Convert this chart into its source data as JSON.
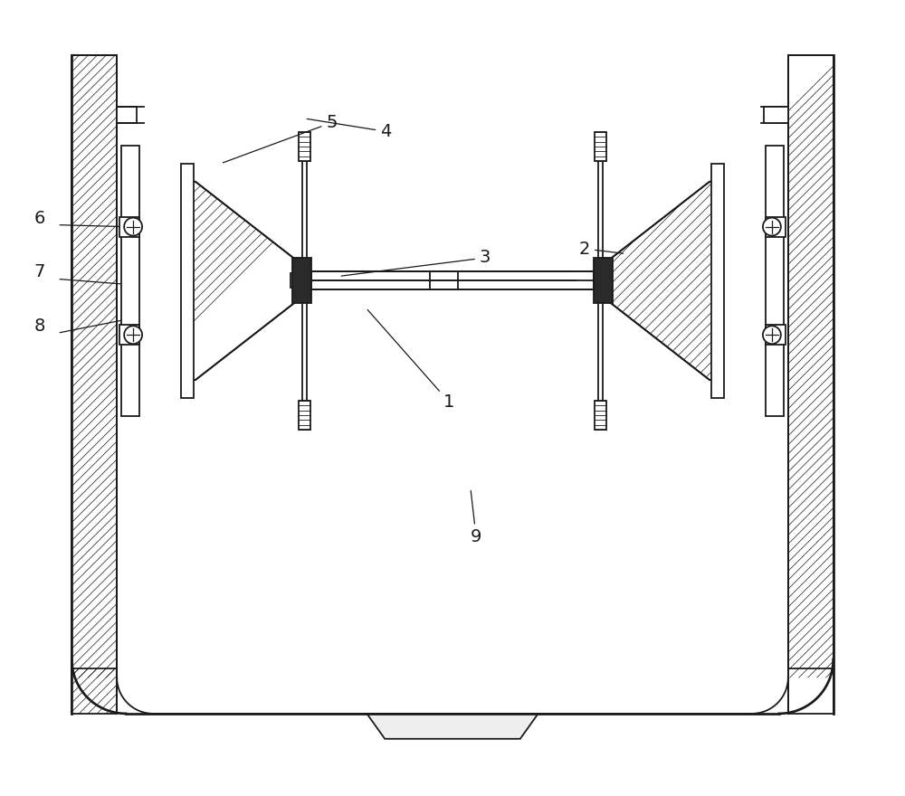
{
  "bg_color": "#ffffff",
  "line_color": "#1a1a1a",
  "lw": 1.3,
  "fig_width": 10.0,
  "fig_height": 8.8
}
